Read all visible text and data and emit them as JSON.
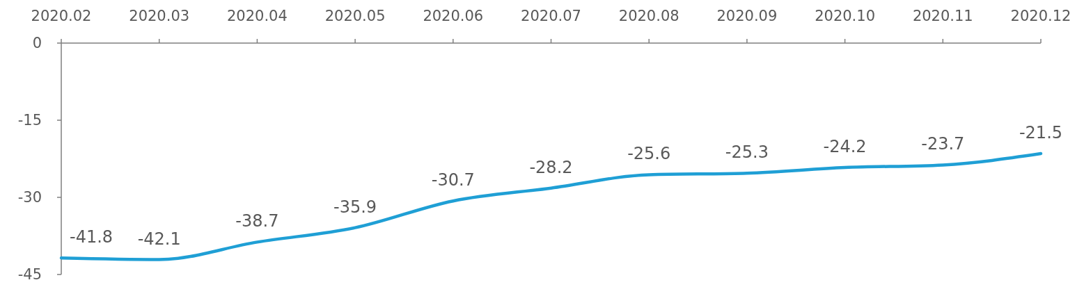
{
  "chart_data": {
    "type": "line",
    "categories": [
      "2020.02",
      "2020.03",
      "2020.04",
      "2020.05",
      "2020.06",
      "2020.07",
      "2020.08",
      "2020.09",
      "2020.10",
      "2020.11",
      "2020.12"
    ],
    "series": [
      {
        "color": "#1f9fd5",
        "values": [
          -41.8,
          -42.1,
          -38.7,
          -35.9,
          -30.7,
          -28.2,
          -25.6,
          -25.3,
          -24.2,
          -23.7,
          -21.5
        ]
      }
    ],
    "ylim": [
      -45,
      0
    ],
    "yticks": [
      0,
      -15,
      -30,
      -45
    ],
    "data_labels": true,
    "grid": false,
    "marker": "none",
    "line_style": "solid"
  }
}
